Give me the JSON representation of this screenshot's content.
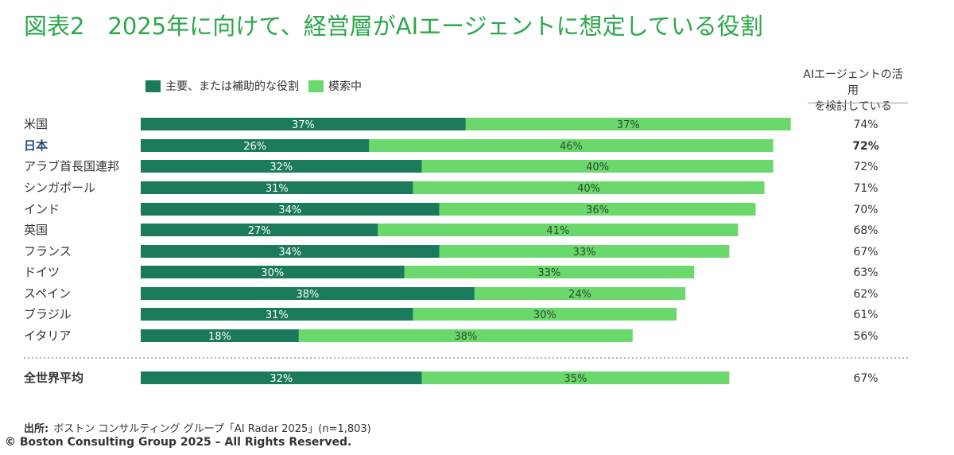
{
  "title": "図表2　2025年に向けて、経営層がAIエージェントに想定している役割",
  "colors": {
    "primary": "#1a7a5b",
    "exploring": "#6ad86a",
    "highlight": "#1f4e79"
  },
  "total_header": {
    "line1": "AIエージェントの活用",
    "line2": "を検討している"
  },
  "source": {
    "label": "出所:",
    "text": "ボストン コンサルティング グループ「AI Radar 2025」(n=1,803)"
  },
  "copyright": "© Boston Consulting Group 2025 – All Rights Reserved.",
  "chart_data": {
    "type": "bar",
    "orientation": "horizontal",
    "stacked": true,
    "legend": {
      "placement": "top-left"
    },
    "series": [
      {
        "name": "主要、または補助的な役割",
        "color": "#1a7a5b",
        "values": [
          37,
          26,
          32,
          31,
          34,
          27,
          34,
          30,
          38,
          31,
          18,
          32
        ]
      },
      {
        "name": "模索中",
        "color": "#6ad86a",
        "values": [
          37,
          46,
          40,
          40,
          36,
          41,
          33,
          33,
          24,
          30,
          38,
          35
        ]
      }
    ],
    "categories": [
      "米国",
      "日本",
      "アラブ首長国連邦",
      "シンガポール",
      "インド",
      "英国",
      "フランス",
      "ドイツ",
      "スペイン",
      "ブラジル",
      "イタリア",
      "全世界平均"
    ],
    "totals": [
      74,
      72,
      72,
      71,
      70,
      68,
      67,
      63,
      62,
      61,
      56,
      67
    ],
    "value_suffix": "%",
    "highlight_category": "日本",
    "average_category": "全世界平均",
    "xlim": [
      0,
      75
    ],
    "grid": false
  }
}
